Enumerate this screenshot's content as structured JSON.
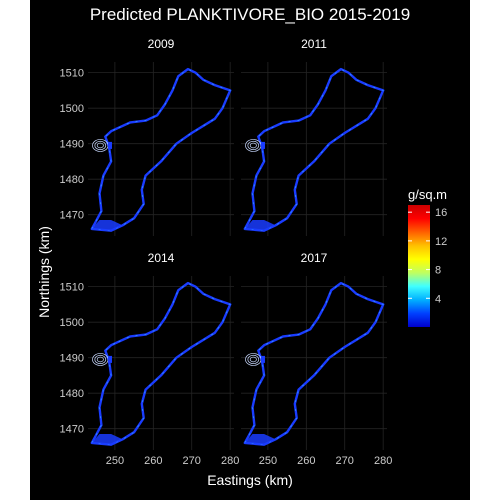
{
  "title": "Predicted PLANKTIVORE_BIO 2015-2019",
  "xlabel": "Eastings (km)",
  "ylabel": "Northings (km)",
  "legend": {
    "title": "g/sq.m",
    "ticks": [
      "4",
      "8",
      "12",
      "16"
    ],
    "tick_values": [
      4,
      8,
      12,
      16
    ],
    "range": [
      0,
      17
    ],
    "colors": [
      "#0000cc",
      "#0040ff",
      "#00b0ff",
      "#40ffff",
      "#c0ff60",
      "#ffff00",
      "#ffc000",
      "#ff6000",
      "#ff0000",
      "#cc0000"
    ]
  },
  "chart_data": {
    "type": "heatmap",
    "facets": [
      "2009",
      "2011",
      "2014",
      "2017"
    ],
    "xlim": [
      243,
      281
    ],
    "ylim": [
      1464,
      1513
    ],
    "x_ticks": [
      "250",
      "260",
      "270",
      "280"
    ],
    "x_tick_values": [
      250,
      260,
      270,
      280
    ],
    "y_ticks": [
      "1470",
      "1480",
      "1490",
      "1500",
      "1510"
    ],
    "y_tick_values": [
      1470,
      1480,
      1490,
      1500,
      1510
    ],
    "grid": true,
    "legend_position": "right",
    "island_color": "#1a3cff",
    "highlight_color": "#3fd0ff",
    "coastline": [
      [
        251,
        1494.5
      ],
      [
        254,
        1496
      ],
      [
        258,
        1496.5
      ],
      [
        261,
        1498
      ],
      [
        263,
        1501
      ],
      [
        265,
        1505
      ],
      [
        266.5,
        1509
      ],
      [
        269,
        1511
      ],
      [
        271,
        1510
      ],
      [
        273,
        1508
      ],
      [
        276,
        1506.5
      ],
      [
        280,
        1505
      ],
      [
        278,
        1500
      ],
      [
        276,
        1497
      ],
      [
        270,
        1493
      ],
      [
        266,
        1490
      ],
      [
        262,
        1485
      ],
      [
        258,
        1481
      ],
      [
        257,
        1477
      ],
      [
        257.5,
        1473
      ],
      [
        255,
        1469
      ],
      [
        252,
        1467
      ],
      [
        249,
        1465.5
      ],
      [
        244,
        1466
      ],
      [
        245,
        1468
      ],
      [
        246.5,
        1471
      ],
      [
        246,
        1476
      ],
      [
        247,
        1481
      ],
      [
        249,
        1485
      ],
      [
        248.5,
        1489
      ],
      [
        247.5,
        1492
      ],
      [
        249,
        1493.5
      ]
    ],
    "lagoon_center": [
      246.2,
      1489.5
    ]
  }
}
